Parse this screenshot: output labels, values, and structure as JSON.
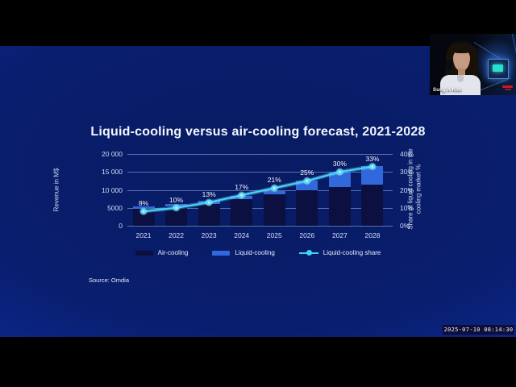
{
  "screen": {
    "timestamp": "2025-07-10 08:14:30"
  },
  "webcam": {
    "participant_name": "Sung A Kim"
  },
  "slide": {
    "source": "Source: Omdia"
  },
  "chart_data": {
    "type": "bar",
    "subtype": "stacked bars with line overlay",
    "title": "Liquid-cooling versus air-cooling forecast, 2021-2028",
    "categories": [
      "2021",
      "2022",
      "2023",
      "2024",
      "2025",
      "2026",
      "2027",
      "2028"
    ],
    "series": [
      {
        "name": "Air-cooling",
        "type": "bar",
        "axis": "left",
        "color": "#0b1040",
        "values": [
          4700,
          5400,
          6100,
          7500,
          8800,
          10000,
          10700,
          11500
        ]
      },
      {
        "name": "Liquid-cooling",
        "type": "bar",
        "axis": "left",
        "color": "#3168dc",
        "values": [
          600,
          700,
          900,
          900,
          900,
          2600,
          4300,
          5200
        ]
      },
      {
        "name": "Liquid-cooling share",
        "type": "line",
        "axis": "right",
        "color": "#41d3f3",
        "unit": "%",
        "values": [
          8,
          10,
          13,
          17,
          21,
          25,
          30,
          33
        ]
      }
    ],
    "y_left": {
      "label": "Revenue in M$",
      "min": 0,
      "max": 20000,
      "ticks": [
        "20 000",
        "15 000",
        "10 000",
        "5000",
        "0"
      ]
    },
    "y_right": {
      "label": "Share of liquid cooling in the cooling market %",
      "label_lines": [
        "Share of liquid cooling in the",
        "cooling market %"
      ],
      "min": 0,
      "max": 40,
      "ticks": [
        "40%",
        "30%",
        "20%",
        "10%",
        "0%"
      ]
    },
    "legend": [
      "Air-cooling",
      "Liquid-cooling",
      "Liquid-cooling share"
    ],
    "grid": "horizontal gridlines on",
    "legend_position": "bottom center"
  }
}
